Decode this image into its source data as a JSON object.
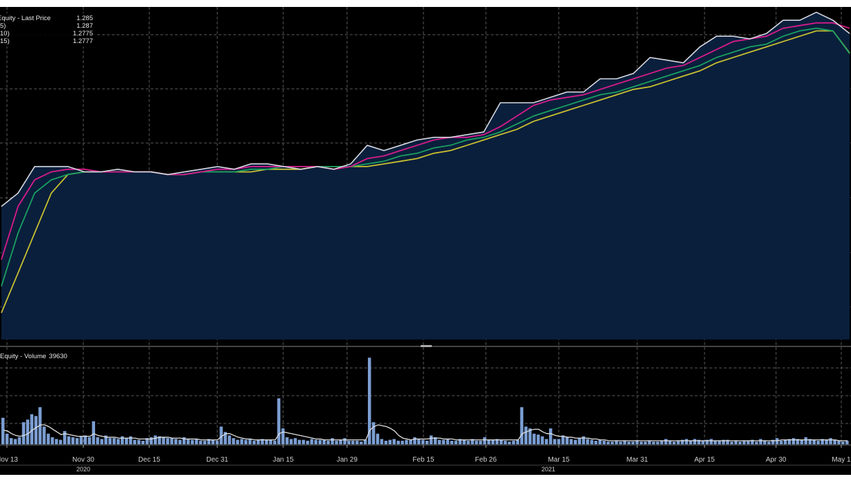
{
  "price_legend": {
    "title": "Equity - Last Price",
    "title_value": "1.285",
    "rows": [
      {
        "label": "5)",
        "value": "1.287"
      },
      {
        "label": "10)",
        "value": "1.2775"
      },
      {
        "label": "15)",
        "value": "1.2777"
      }
    ]
  },
  "volume_legend": {
    "title": "Equity - Volume",
    "value": "39630"
  },
  "x_axis": {
    "ticks": [
      "Nov 13",
      "Nov 30",
      "Dec 15",
      "Dec 31",
      "Jan 15",
      "Jan 29",
      "Feb 15",
      "Feb 26",
      "Mar 15",
      "Mar 31",
      "Apr 15",
      "Apr 30",
      "May 1"
    ],
    "years": [
      "2020",
      "2021"
    ]
  },
  "colors": {
    "background": "#000000",
    "area_fill": "#0a1f3c",
    "last_price": "#d8d8e0",
    "ma5": "#d81b8c",
    "ma10": "#1aa060",
    "ma15": "#c8c030",
    "volume_bar": "#7b9ed2",
    "volume_avg": "#e0e0e0",
    "grid": "#5a5a5a"
  },
  "chart_data": [
    {
      "type": "line",
      "title": "",
      "series": [
        {
          "name": "Last Price",
          "values": [
            1.22,
            1.225,
            1.235,
            1.235,
            1.235,
            1.233,
            1.233,
            1.234,
            1.233,
            1.233,
            1.232,
            1.233,
            1.234,
            1.235,
            1.234,
            1.236,
            1.236,
            1.235,
            1.234,
            1.235,
            1.234,
            1.236,
            1.243,
            1.241,
            1.243,
            1.245,
            1.246,
            1.246,
            1.247,
            1.248,
            1.259,
            1.259,
            1.259,
            1.261,
            1.263,
            1.263,
            1.268,
            1.268,
            1.27,
            1.276,
            1.275,
            1.274,
            1.28,
            1.284,
            1.284,
            1.283,
            1.285,
            1.29,
            1.29,
            1.293,
            1.29,
            1.285
          ]
        },
        {
          "name": "5)",
          "values": [
            1.2,
            1.22,
            1.23,
            1.233,
            1.234,
            1.234,
            1.233,
            1.233,
            1.233,
            1.233,
            1.232,
            1.232,
            1.233,
            1.234,
            1.234,
            1.235,
            1.235,
            1.235,
            1.235,
            1.235,
            1.234,
            1.235,
            1.238,
            1.239,
            1.241,
            1.243,
            1.245,
            1.246,
            1.246,
            1.247,
            1.25,
            1.254,
            1.258,
            1.26,
            1.261,
            1.262,
            1.264,
            1.266,
            1.268,
            1.27,
            1.272,
            1.273,
            1.276,
            1.279,
            1.282,
            1.283,
            1.284,
            1.287,
            1.288,
            1.289,
            1.289,
            1.287
          ]
        },
        {
          "name": "10)",
          "values": [
            1.19,
            1.21,
            1.225,
            1.23,
            1.232,
            1.233,
            1.233,
            1.233,
            1.233,
            1.233,
            1.232,
            1.232,
            1.233,
            1.233,
            1.233,
            1.234,
            1.234,
            1.235,
            1.235,
            1.235,
            1.235,
            1.235,
            1.236,
            1.237,
            1.239,
            1.24,
            1.242,
            1.243,
            1.245,
            1.246,
            1.248,
            1.251,
            1.254,
            1.256,
            1.258,
            1.26,
            1.262,
            1.263,
            1.265,
            1.267,
            1.269,
            1.271,
            1.273,
            1.276,
            1.278,
            1.28,
            1.281,
            1.284,
            1.286,
            1.287,
            1.286,
            1.2775
          ]
        },
        {
          "name": "15)",
          "values": [
            1.18,
            1.195,
            1.21,
            1.225,
            1.232,
            1.233,
            1.233,
            1.233,
            1.233,
            1.233,
            1.232,
            1.232,
            1.233,
            1.233,
            1.233,
            1.233,
            1.234,
            1.234,
            1.234,
            1.235,
            1.235,
            1.235,
            1.235,
            1.236,
            1.237,
            1.238,
            1.24,
            1.241,
            1.243,
            1.245,
            1.247,
            1.249,
            1.252,
            1.254,
            1.256,
            1.258,
            1.26,
            1.262,
            1.264,
            1.265,
            1.267,
            1.269,
            1.271,
            1.274,
            1.276,
            1.278,
            1.28,
            1.282,
            1.284,
            1.286,
            1.286,
            1.2777
          ]
        }
      ],
      "ylim": [
        1.17,
        1.295
      ],
      "grid": true,
      "legend": "top-left"
    },
    {
      "type": "bar",
      "title": "",
      "values": [
        30000,
        12000,
        7000,
        6000,
        8000,
        25000,
        28000,
        34000,
        32000,
        42000,
        20000,
        12000,
        8000,
        6000,
        5000,
        15000,
        9000,
        8000,
        7000,
        9000,
        10000,
        8000,
        26000,
        8000,
        6000,
        10000,
        7000,
        7000,
        6000,
        9000,
        7000,
        9000,
        5000,
        5000,
        4000,
        7000,
        8000,
        10000,
        9000,
        8000,
        7000,
        7000,
        6000,
        5000,
        8000,
        6000,
        5000,
        6000,
        4000,
        4000,
        6000,
        5000,
        4000,
        20000,
        14000,
        10000,
        7000,
        5000,
        6000,
        5000,
        6000,
        4000,
        5000,
        6000,
        5000,
        5000,
        4000,
        52000,
        18000,
        8000,
        6000,
        7000,
        5000,
        5000,
        4000,
        6000,
        5000,
        5000,
        5000,
        4000,
        7000,
        4000,
        5000,
        7000,
        4000,
        4000,
        4000,
        3000,
        5000,
        98000,
        25000,
        12000,
        6000,
        4000,
        5000,
        6000,
        4000,
        4000,
        5000,
        5000,
        8000,
        6000,
        5000,
        4000,
        10000,
        8000,
        5000,
        5000,
        6000,
        4000,
        4000,
        6000,
        5000,
        4000,
        6000,
        4000,
        4000,
        8000,
        5000,
        5000,
        6000,
        5000,
        4000,
        3000,
        4000,
        5000,
        42000,
        20000,
        18000,
        12000,
        11000,
        9000,
        6000,
        18000,
        6000,
        6000,
        10000,
        8000,
        6000,
        5000,
        7000,
        9000,
        6000,
        5000,
        4000,
        5000,
        4000,
        3000,
        3000,
        4000,
        3000,
        4000,
        3000,
        3000,
        4000,
        3000,
        3000,
        4000,
        3000,
        3000,
        4000,
        6000,
        4000,
        3000,
        4000,
        5000,
        6000,
        4000,
        6000,
        5000,
        4000,
        5000,
        6000,
        4000,
        4000,
        5000,
        5000,
        3000,
        4000,
        3000,
        4000,
        4000,
        5000,
        3000,
        6000,
        4000,
        3000,
        5000,
        7000,
        4000,
        5000,
        6000,
        7000,
        6000,
        5000,
        8000,
        6000,
        5000,
        4000,
        6000,
        5000,
        7000,
        5000,
        4000,
        3000,
        4000
      ],
      "avg_line": [
        16000,
        15000,
        12000,
        10000,
        9000,
        10000,
        12000,
        16000,
        19000,
        22000,
        22000,
        20000,
        17000,
        14000,
        11000,
        12000,
        11000,
        10000,
        9000,
        9000,
        9000,
        9000,
        12000,
        10000,
        9000,
        8000,
        8000,
        8000,
        7000,
        7000,
        7000,
        7000,
        7000,
        6000,
        6000,
        6000,
        6000,
        7000,
        8000,
        8000,
        8000,
        7000,
        7000,
        7000,
        6000,
        6000,
        6000,
        6000,
        5000,
        5000,
        5000,
        5000,
        5000,
        9000,
        12000,
        12000,
        10000,
        8000,
        7000,
        6000,
        6000,
        5000,
        5000,
        5000,
        5000,
        5000,
        5000,
        12000,
        14000,
        13000,
        12000,
        11000,
        10000,
        9000,
        8000,
        7000,
        6000,
        6000,
        5000,
        5000,
        5000,
        5000,
        5000,
        5000,
        5000,
        5000,
        5000,
        5000,
        5000,
        16000,
        20000,
        22000,
        21000,
        20000,
        18000,
        15000,
        10000,
        7000,
        6000,
        5000,
        6000,
        6000,
        6000,
        6000,
        7000,
        7000,
        7000,
        6000,
        6000,
        6000,
        5000,
        5000,
        5000,
        5000,
        5000,
        5000,
        5000,
        5000,
        5000,
        5000,
        5000,
        5000,
        5000,
        5000,
        5000,
        5000,
        12000,
        14000,
        16000,
        17000,
        17000,
        14000,
        12000,
        12000,
        10000,
        9000,
        9000,
        8000,
        8000,
        7000,
        7000,
        7000,
        7000,
        6000,
        6000,
        5000,
        5000,
        4000,
        4000,
        4000,
        4000,
        4000,
        4000,
        4000,
        4000,
        4000,
        4000,
        4000,
        4000,
        4000,
        4000,
        4000,
        4000,
        4000,
        4000,
        4000,
        4000,
        4000,
        4000,
        4000,
        4000,
        4000,
        4000,
        4000,
        4000,
        4000,
        4000,
        4000,
        4000,
        4000,
        4000,
        4000,
        4000,
        4000,
        4000,
        4000,
        4000,
        4000,
        4000,
        5000,
        5000,
        5000,
        5000,
        5000,
        5000,
        5000,
        5000,
        5000,
        5000,
        5000,
        5000,
        5000,
        5000,
        4000,
        4000,
        4000
      ],
      "ylim": [
        0,
        110000
      ],
      "grid": true,
      "legend": "top-left"
    }
  ]
}
